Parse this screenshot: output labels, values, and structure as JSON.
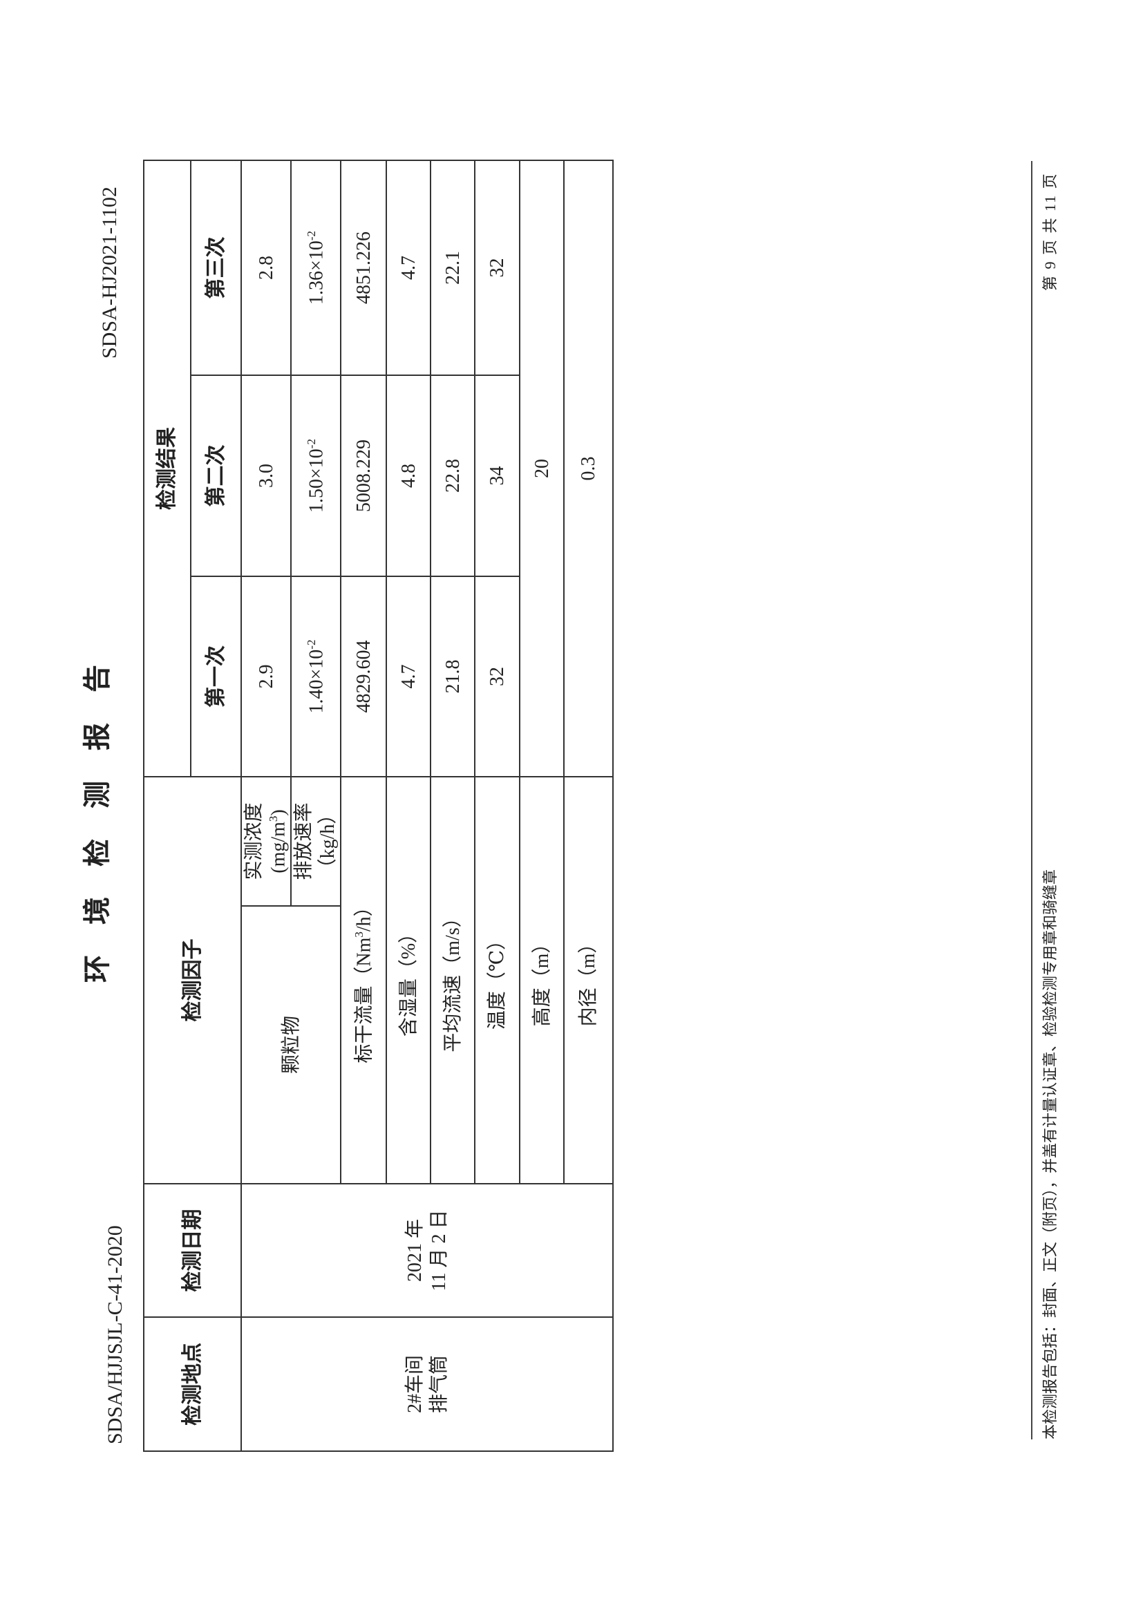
{
  "header": {
    "title": "环境检测报告",
    "form_code": "SDSA/HJJSJL-C-41-2020",
    "report_no": "SDSA-HJ2021-1102"
  },
  "table": {
    "headers": {
      "location": "检测地点",
      "date": "检测日期",
      "factor": "检测因子",
      "results": "检测结果",
      "run1": "第一次",
      "run2": "第二次",
      "run3": "第三次"
    },
    "location": {
      "line1": "2#车间",
      "line2": "排气筒"
    },
    "date": {
      "line1": "2021 年",
      "line2": "11 月 2 日"
    },
    "pollutant": "颗粒物",
    "rows": [
      {
        "factor": "实测浓度(mg/m",
        "factor_sup": "3",
        "factor_end": ")",
        "v1": "2.9",
        "v2": "3.0",
        "v3": "2.8"
      },
      {
        "factor": "排放速率（kg/h）",
        "v1": "1.40×10",
        "v1_exp": "-2",
        "v2": "1.50×10",
        "v2_exp": "-2",
        "v3": "1.36×10",
        "v3_exp": "-2"
      },
      {
        "factor": "标干流量（Nm",
        "factor_sup": "3",
        "factor_end": "/h）",
        "v1": "4829.604",
        "v2": "5008.229",
        "v3": "4851.226"
      },
      {
        "factor": "含湿量（%）",
        "v1": "4.7",
        "v2": "4.8",
        "v3": "4.7"
      },
      {
        "factor": "平均流速（m/s）",
        "v1": "21.8",
        "v2": "22.8",
        "v3": "22.1"
      },
      {
        "factor": "温度（℃）",
        "v1": "32",
        "v2": "34",
        "v3": "32"
      },
      {
        "factor": "高度（m）",
        "value": "20"
      },
      {
        "factor": "内径（m）",
        "value": "0.3"
      }
    ]
  },
  "footer": {
    "note": "本检测报告包括：封面、正文（附页），并盖有计量认证章、检验检测专用章和骑缝章",
    "page": "第 9 页 共 11 页"
  }
}
